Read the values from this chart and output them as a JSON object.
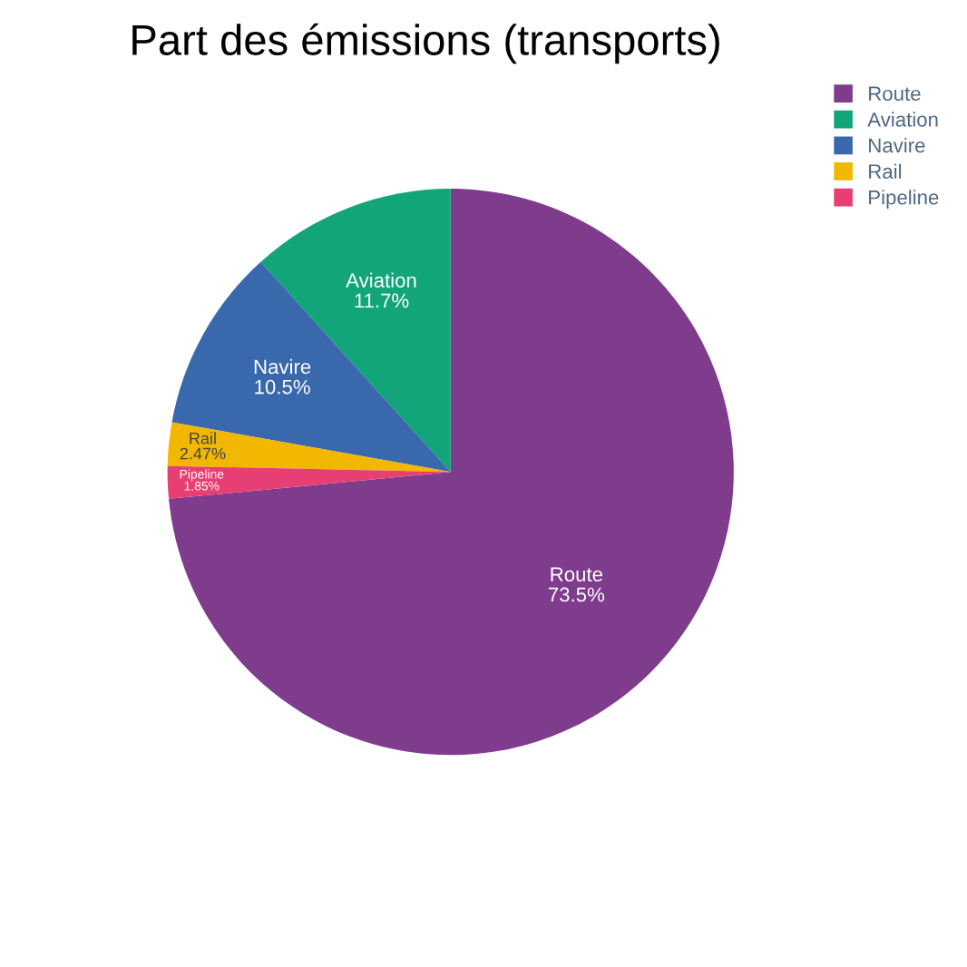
{
  "chart_data": {
    "type": "pie",
    "title": "Part des émissions (transports)",
    "categories": [
      "Route",
      "Aviation",
      "Navire",
      "Rail",
      "Pipeline"
    ],
    "values": [
      73.5,
      11.7,
      10.5,
      2.47,
      1.85
    ],
    "colors": [
      "#7f3c8d",
      "#11a579",
      "#3969ac",
      "#f2b701",
      "#e73f74"
    ],
    "value_labels": [
      "73.5%",
      "11.7%",
      "10.5%",
      "2.47%",
      "1.85%"
    ],
    "legend": "top right"
  }
}
